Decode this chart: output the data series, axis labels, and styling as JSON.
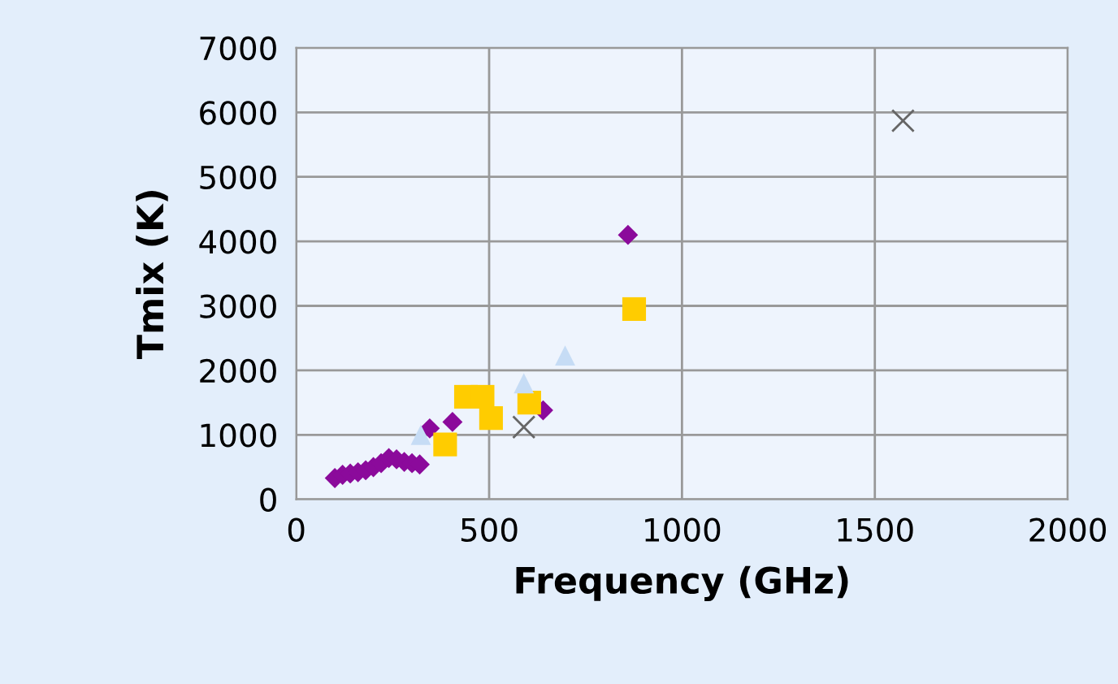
{
  "chart_data": {
    "type": "scatter",
    "xlabel": "Frequency (GHz)",
    "ylabel": "Tmix (K)",
    "xlim": [
      0,
      2000
    ],
    "xticks": [
      0,
      500,
      1000,
      1500,
      2000
    ],
    "ylim": [
      0,
      7000
    ],
    "yticks": [
      0,
      1000,
      2000,
      3000,
      4000,
      5000,
      6000,
      7000
    ],
    "grid": true,
    "series": [
      {
        "color": "#8b0a9b",
        "marker": "diamond",
        "x": [
          100,
          120,
          140,
          160,
          180,
          200,
          220,
          240,
          260,
          280,
          300,
          320,
          346,
          405,
          640,
          860
        ],
        "values": [
          330,
          380,
          400,
          420,
          450,
          500,
          560,
          640,
          620,
          580,
          560,
          540,
          1100,
          1200,
          1380,
          4100
        ]
      },
      {
        "color": "#ffcc00",
        "marker": "square",
        "x": [
          386,
          440,
          483,
          505,
          604,
          876
        ],
        "values": [
          850,
          1590,
          1590,
          1260,
          1500,
          2950
        ]
      },
      {
        "color": "#c6dcf5",
        "marker": "triangle",
        "x": [
          323,
          590,
          697
        ],
        "values": [
          1000,
          1800,
          2230
        ]
      },
      {
        "color": "#666666",
        "marker": "cross",
        "x": [
          590,
          1573
        ],
        "values": [
          1120,
          5870
        ]
      }
    ]
  }
}
